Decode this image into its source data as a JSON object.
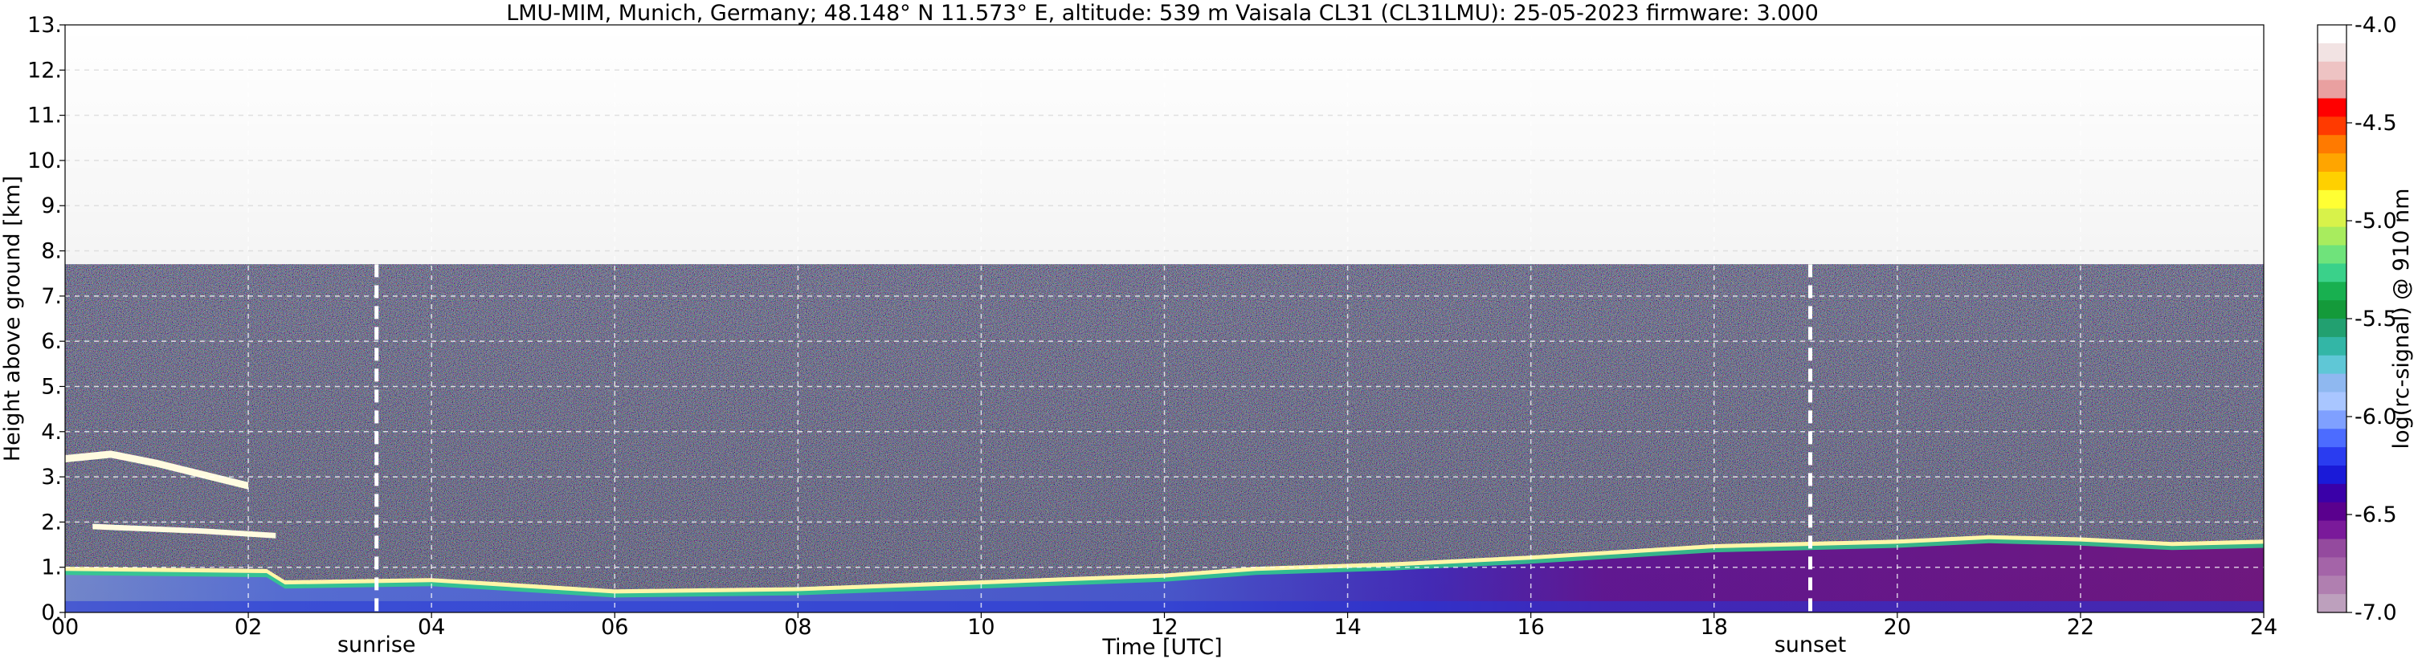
{
  "chart_data": {
    "type": "heatmap",
    "title": "LMU-MIM, Munich, Germany; 48.148° N 11.573° E, altitude: 539 m    Vaisala CL31 (CL31LMU): 25-05-2023    firmware: 3.000",
    "xlabel": "Time [UTC]",
    "ylabel": "Height above ground [km]",
    "xlim": [
      0,
      24
    ],
    "ylim": [
      0,
      13
    ],
    "x_ticks": [
      0,
      2,
      4,
      6,
      8,
      10,
      12,
      14,
      16,
      18,
      20,
      22,
      24
    ],
    "x_tick_labels": [
      "00",
      "02",
      "04",
      "06",
      "08",
      "10",
      "12",
      "14",
      "16",
      "18",
      "20",
      "22",
      "24"
    ],
    "y_ticks": [
      0,
      1,
      2,
      3,
      4,
      5,
      6,
      7,
      8,
      9,
      10,
      11,
      12,
      13
    ],
    "y_tick_labels": [
      "0.",
      "1.",
      "2.",
      "3.",
      "4.",
      "5.",
      "6.",
      "7.",
      "8.",
      "9.",
      "10.",
      "11.",
      "12.",
      "13."
    ],
    "grid": true,
    "data_top_height_km": 7.7,
    "colorbar": {
      "label": "log(rc-signal) @ 910 nm",
      "range": [
        -7.0,
        -4.0
      ],
      "ticks": [
        -4.0,
        -4.5,
        -5.0,
        -5.5,
        -6.0,
        -6.5,
        -7.0
      ],
      "tick_labels": [
        "-4.0",
        "-4.5",
        "-5.0",
        "-5.5",
        "-6.0",
        "-6.5",
        "-7.0"
      ],
      "colors": [
        "#ffffff",
        "#f2e3e3",
        "#eec3c3",
        "#e9a0a0",
        "#ff0000",
        "#ff3a00",
        "#ff7a00",
        "#ffa500",
        "#ffd000",
        "#ffff33",
        "#d8f24a",
        "#a8ec5e",
        "#6fe37b",
        "#3ad18a",
        "#18b050",
        "#149a3a",
        "#22a070",
        "#33b6a6",
        "#5fc7d6",
        "#8fb8f0",
        "#a9c6ff",
        "#7fa0ff",
        "#4c6cff",
        "#2a3cf0",
        "#1a1ad8",
        "#3a00a8",
        "#5a008e",
        "#7a1a9a",
        "#944a9e",
        "#a464a8",
        "#b07fb0",
        "#bda0bd"
      ]
    },
    "markers": [
      {
        "label": "sunrise",
        "time": 3.4
      },
      {
        "label": "sunset",
        "time": 19.05
      }
    ],
    "layers": [
      {
        "name": "aerosol-layer-top",
        "points": [
          [
            0,
            0.95
          ],
          [
            2.2,
            0.9
          ],
          [
            2.4,
            0.65
          ],
          [
            4,
            0.7
          ],
          [
            6,
            0.45
          ],
          [
            8,
            0.5
          ],
          [
            10,
            0.65
          ],
          [
            12,
            0.8
          ],
          [
            13,
            0.95
          ],
          [
            14.5,
            1.05
          ],
          [
            16,
            1.2
          ],
          [
            18,
            1.45
          ],
          [
            20,
            1.55
          ],
          [
            21,
            1.65
          ],
          [
            22,
            1.6
          ],
          [
            23,
            1.5
          ],
          [
            24,
            1.55
          ]
        ]
      },
      {
        "name": "cloud-layer",
        "points": [
          [
            0,
            3.4
          ],
          [
            0.5,
            3.5
          ],
          [
            1,
            3.3
          ],
          [
            2,
            2.8
          ]
        ]
      },
      {
        "name": "residual-layer",
        "points": [
          [
            0.3,
            1.9
          ],
          [
            1.5,
            1.8
          ],
          [
            2.3,
            1.7
          ]
        ]
      }
    ]
  }
}
